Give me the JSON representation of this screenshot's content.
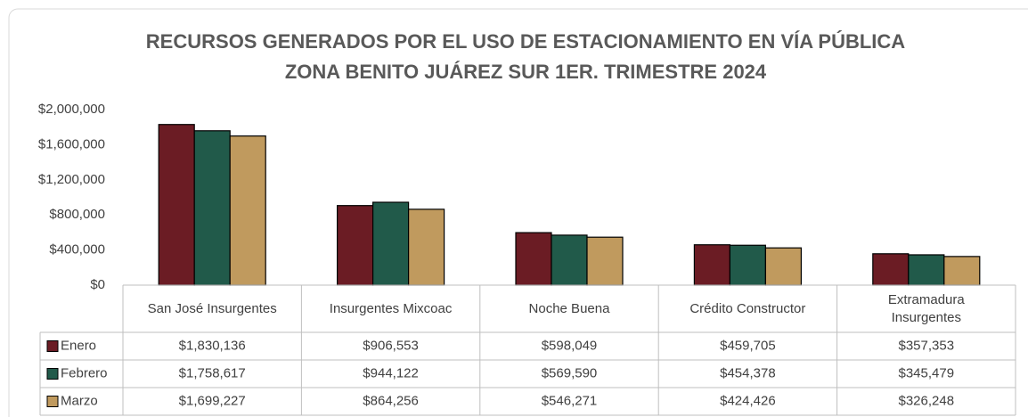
{
  "chart_data": {
    "type": "bar",
    "title": "RECURSOS GENERADOS POR EL USO DE ESTACIONAMIENTO EN VÍA PÚBLICA",
    "subtitle": "ZONA BENITO JUÁREZ SUR 1ER. TRIMESTRE 2024",
    "categories": [
      "San José Insurgentes",
      "Insurgentes Mixcoac",
      "Noche Buena",
      "Crédito Constructor",
      "Extramadura Insurgentes"
    ],
    "series": [
      {
        "name": "Enero",
        "color": "#6b1c24",
        "values": [
          1830136,
          906553,
          598049,
          459705,
          357353
        ],
        "value_labels": [
          "$1,830,136",
          "$906,553",
          "$598,049",
          "$459,705",
          "$357,353"
        ]
      },
      {
        "name": "Febrero",
        "color": "#215a4a",
        "values": [
          1758617,
          944122,
          569590,
          454378,
          345479
        ],
        "value_labels": [
          "$1,758,617",
          "$944,122",
          "$569,590",
          "$454,378",
          "$345,479"
        ]
      },
      {
        "name": "Marzo",
        "color": "#c09a5e",
        "values": [
          1699227,
          864256,
          546271,
          424426,
          326248
        ],
        "value_labels": [
          "$1,699,227",
          "$864,256",
          "$546,271",
          "$424,426",
          "$326,248"
        ]
      }
    ],
    "ylim": [
      0,
      2000000
    ],
    "yticks": [
      {
        "value": 0,
        "label": "$0"
      },
      {
        "value": 400000,
        "label": "$400,000"
      },
      {
        "value": 800000,
        "label": "$800,000"
      },
      {
        "value": 1200000,
        "label": "$1,200,000"
      },
      {
        "value": 1600000,
        "label": "$1,600,000"
      },
      {
        "value": 2000000,
        "label": "$2,000,000"
      }
    ]
  }
}
